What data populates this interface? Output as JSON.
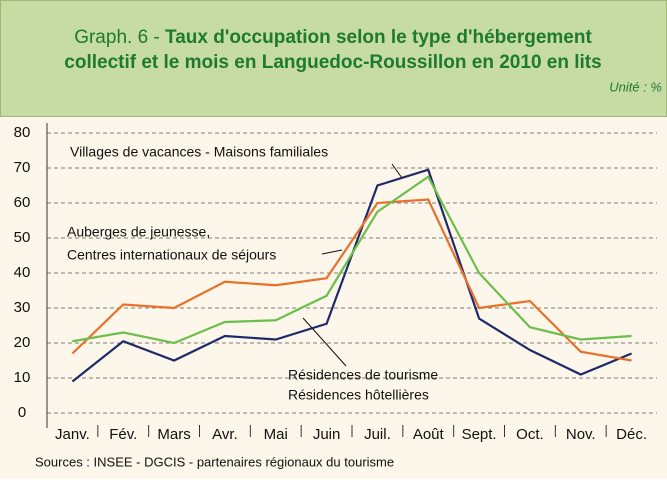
{
  "chart_data": {
    "type": "line",
    "title_prefix": "Graph. 6 - ",
    "title_lines": [
      "Taux d'occupation selon le type d'hébergement",
      "collectif et le mois en Languedoc-Roussillon en 2010 en lits"
    ],
    "unit": "Unité : %",
    "source": "Sources : INSEE - DGCIS - partenaires régionaux du tourisme",
    "categories": [
      "Janv.",
      "Fév.",
      "Mars",
      "Avr.",
      "Mai",
      "Juin",
      "Juil.",
      "Août",
      "Sept.",
      "Oct.",
      "Nov.",
      "Déc."
    ],
    "series": [
      {
        "name": [
          "Villages de vacances - Maisons familiales"
        ],
        "color": "#1f2a6b",
        "values": [
          9,
          20.5,
          15,
          22,
          21,
          25.5,
          65,
          69.5,
          27,
          18,
          11,
          17
        ]
      },
      {
        "name": [
          "Auberges de jeunesse,",
          "Centres internationaux de séjours"
        ],
        "color": "#e8702a",
        "values": [
          17,
          31,
          30,
          37.5,
          36.5,
          38.5,
          60,
          61,
          30,
          32,
          17.5,
          15
        ]
      },
      {
        "name": [
          "Résidences de tourisme",
          "Résidences hôtellières"
        ],
        "color": "#6cbf4a",
        "values": [
          20.5,
          23,
          20,
          26,
          26.5,
          33.5,
          57.5,
          67.5,
          40,
          24.5,
          21,
          22
        ]
      }
    ],
    "ylim": [
      0,
      80
    ],
    "yticks": [
      0,
      10,
      20,
      30,
      40,
      50,
      60,
      70,
      80
    ],
    "grid": true
  }
}
